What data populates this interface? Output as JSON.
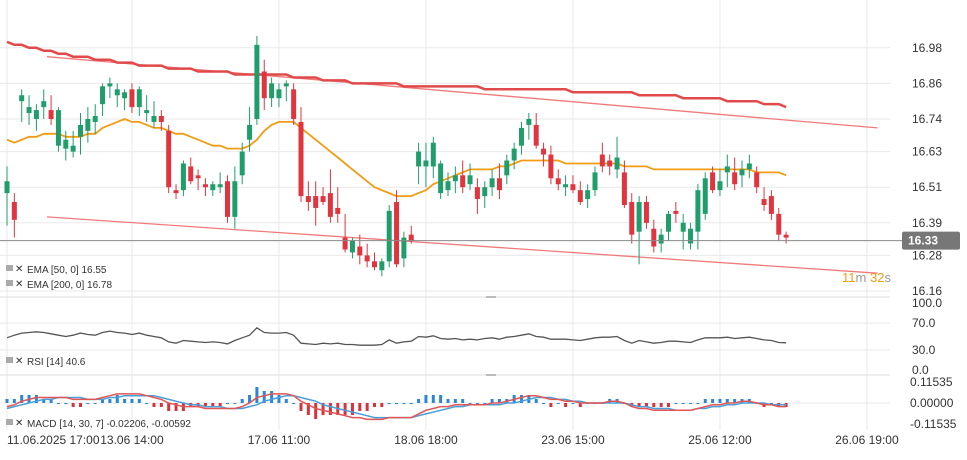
{
  "colors": {
    "up": "#1f9d6b",
    "down": "#e0343f",
    "ema50": "#f39c12",
    "ema200": "#e04a4a",
    "channel": "#f07a7a",
    "rsi": "#555555",
    "macd_line": "#e25555",
    "macd_signal": "#4a9fd8",
    "hist_up": "#2c86d6",
    "hist_down": "#d6333a",
    "grid": "#e9e9e9",
    "price_line": "#8a8a8a",
    "timer_orange": "#f39c12"
  },
  "price_axis": {
    "min": 16.16,
    "max": 17.04,
    "ticks": [
      "16.98",
      "16.86",
      "16.74",
      "16.63",
      "16.51",
      "16.39",
      "16.28",
      "16.16"
    ]
  },
  "current_price": {
    "value": 16.33,
    "label": "16.33"
  },
  "timer": {
    "minutes": "11",
    "m": "m",
    "seconds": "32",
    "s": "s"
  },
  "x_labels": [
    "11.06.2025 17:00",
    "13.06 14:00",
    "17.06 11:00",
    "18.06 18:00",
    "23.06 15:00",
    "25.06 12:00",
    "26.06 19:00"
  ],
  "legend": {
    "ema50": "EMA [50, 0] 16.55",
    "ema200": "EMA [200, 0] 16.78",
    "rsi": "RSI [14] 40.6",
    "macd": "MACD [14, 30, 7] -0.02206, -0.00592"
  },
  "rsi_axis": {
    "min": 0,
    "max": 100,
    "ticks": [
      "100.0",
      "70.0",
      "30.0",
      "0.0"
    ]
  },
  "macd_axis": {
    "min": -0.11535,
    "max": 0.11535,
    "ticks": [
      "0.11535",
      "0.00000",
      "-0.11535"
    ]
  },
  "chart_data": {
    "type": "candlestick",
    "candles": [
      [
        16.49,
        16.58,
        16.38,
        16.53
      ],
      [
        16.46,
        16.49,
        16.34,
        16.4
      ],
      [
        16.8,
        16.84,
        16.73,
        16.82
      ],
      [
        16.76,
        16.82,
        16.72,
        16.78
      ],
      [
        16.74,
        16.79,
        16.7,
        16.77
      ],
      [
        16.78,
        16.84,
        16.74,
        16.8
      ],
      [
        16.77,
        16.82,
        16.72,
        16.74
      ],
      [
        16.65,
        16.78,
        16.63,
        16.77
      ],
      [
        16.64,
        16.7,
        16.6,
        16.67
      ],
      [
        16.63,
        16.7,
        16.61,
        16.65
      ],
      [
        16.68,
        16.76,
        16.62,
        16.72
      ],
      [
        16.7,
        16.78,
        16.66,
        16.74
      ],
      [
        16.73,
        16.79,
        16.69,
        16.75
      ],
      [
        16.79,
        16.86,
        16.75,
        16.85
      ],
      [
        16.85,
        16.88,
        16.81,
        16.86
      ],
      [
        16.82,
        16.86,
        16.78,
        16.84
      ],
      [
        16.81,
        16.84,
        16.77,
        16.83
      ],
      [
        16.84,
        16.86,
        16.76,
        16.78
      ],
      [
        16.78,
        16.85,
        16.75,
        16.84
      ],
      [
        16.76,
        16.82,
        16.73,
        16.77
      ],
      [
        16.73,
        16.8,
        16.71,
        16.75
      ],
      [
        16.75,
        16.77,
        16.7,
        16.73
      ],
      [
        16.7,
        16.72,
        16.49,
        16.51
      ],
      [
        16.5,
        16.52,
        16.47,
        16.49
      ],
      [
        16.5,
        16.6,
        16.48,
        16.59
      ],
      [
        16.58,
        16.61,
        16.52,
        16.53
      ],
      [
        16.55,
        16.57,
        16.5,
        16.54
      ],
      [
        16.52,
        16.54,
        16.48,
        16.51
      ],
      [
        16.5,
        16.53,
        16.48,
        16.52
      ],
      [
        16.51,
        16.56,
        16.49,
        16.52
      ],
      [
        16.53,
        16.55,
        16.39,
        16.41
      ],
      [
        16.41,
        16.58,
        16.37,
        16.53
      ],
      [
        16.55,
        16.66,
        16.52,
        16.63
      ],
      [
        16.67,
        16.78,
        16.63,
        16.72
      ],
      [
        16.74,
        17.02,
        16.72,
        16.99
      ],
      [
        16.9,
        16.94,
        16.77,
        16.81
      ],
      [
        16.81,
        16.88,
        16.78,
        16.86
      ],
      [
        16.81,
        16.86,
        16.78,
        16.84
      ],
      [
        16.85,
        16.87,
        16.8,
        16.86
      ],
      [
        16.84,
        16.86,
        16.72,
        16.74
      ],
      [
        16.73,
        16.78,
        16.46,
        16.48
      ],
      [
        16.48,
        16.53,
        16.43,
        16.46
      ],
      [
        16.48,
        16.53,
        16.38,
        16.44
      ],
      [
        16.48,
        16.51,
        16.45,
        16.46
      ],
      [
        16.49,
        16.57,
        16.39,
        16.41
      ],
      [
        16.44,
        16.51,
        16.39,
        16.42
      ],
      [
        16.34,
        16.42,
        16.29,
        16.3
      ],
      [
        16.29,
        16.34,
        16.27,
        16.33
      ],
      [
        16.31,
        16.35,
        16.25,
        16.28
      ],
      [
        16.28,
        16.32,
        16.24,
        16.26
      ],
      [
        16.26,
        16.29,
        16.23,
        16.24
      ],
      [
        16.23,
        16.27,
        16.21,
        16.26
      ],
      [
        16.26,
        16.45,
        16.24,
        16.43
      ],
      [
        16.46,
        16.5,
        16.24,
        16.25
      ],
      [
        16.27,
        16.36,
        16.24,
        16.34
      ],
      [
        16.35,
        16.38,
        16.32,
        16.33
      ],
      [
        16.58,
        16.66,
        16.52,
        16.63
      ],
      [
        16.58,
        16.66,
        16.51,
        16.6
      ],
      [
        16.58,
        16.68,
        16.54,
        16.66
      ],
      [
        16.49,
        16.6,
        16.47,
        16.59
      ],
      [
        16.5,
        16.56,
        16.48,
        16.53
      ],
      [
        16.53,
        16.58,
        16.49,
        16.55
      ],
      [
        16.55,
        16.6,
        16.49,
        16.51
      ],
      [
        16.52,
        16.59,
        16.5,
        16.55
      ],
      [
        16.51,
        16.54,
        16.42,
        16.47
      ],
      [
        16.48,
        16.53,
        16.44,
        16.51
      ],
      [
        16.51,
        16.57,
        16.48,
        16.54
      ],
      [
        16.54,
        16.59,
        16.47,
        16.5
      ],
      [
        16.55,
        16.62,
        16.52,
        16.6
      ],
      [
        16.6,
        16.66,
        16.57,
        16.64
      ],
      [
        16.65,
        16.73,
        16.62,
        16.71
      ],
      [
        16.72,
        16.76,
        16.67,
        16.74
      ],
      [
        16.72,
        16.76,
        16.64,
        16.65
      ],
      [
        16.64,
        16.66,
        16.58,
        16.62
      ],
      [
        16.62,
        16.65,
        16.52,
        16.54
      ],
      [
        16.54,
        16.57,
        16.5,
        16.52
      ],
      [
        16.51,
        16.55,
        16.48,
        16.52
      ],
      [
        16.52,
        16.55,
        16.49,
        16.5
      ],
      [
        16.5,
        16.53,
        16.45,
        16.46
      ],
      [
        16.47,
        16.52,
        16.44,
        16.5
      ],
      [
        16.5,
        16.58,
        16.48,
        16.56
      ],
      [
        16.62,
        16.66,
        16.56,
        16.58
      ],
      [
        16.6,
        16.62,
        16.55,
        16.58
      ],
      [
        16.57,
        16.68,
        16.54,
        16.61
      ],
      [
        16.56,
        16.6,
        16.44,
        16.45
      ],
      [
        16.46,
        16.49,
        16.32,
        16.35
      ],
      [
        16.36,
        16.48,
        16.25,
        16.46
      ],
      [
        16.46,
        16.48,
        16.37,
        16.39
      ],
      [
        16.37,
        16.4,
        16.29,
        16.31
      ],
      [
        16.32,
        16.37,
        16.29,
        16.35
      ],
      [
        16.36,
        16.43,
        16.33,
        16.42
      ],
      [
        16.43,
        16.46,
        16.39,
        16.42
      ],
      [
        16.36,
        16.42,
        16.3,
        16.39
      ],
      [
        16.32,
        16.39,
        16.3,
        16.37
      ],
      [
        16.36,
        16.52,
        16.3,
        16.5
      ],
      [
        16.42,
        16.56,
        16.4,
        16.54
      ],
      [
        16.56,
        16.58,
        16.49,
        16.5
      ],
      [
        16.5,
        16.57,
        16.48,
        16.53
      ],
      [
        16.56,
        16.62,
        16.51,
        16.58
      ],
      [
        16.56,
        16.61,
        16.5,
        16.52
      ],
      [
        16.55,
        16.6,
        16.51,
        16.57
      ],
      [
        16.57,
        16.62,
        16.54,
        16.59
      ],
      [
        16.56,
        16.58,
        16.49,
        16.51
      ],
      [
        16.47,
        16.51,
        16.43,
        16.45
      ],
      [
        16.48,
        16.5,
        16.4,
        16.42
      ],
      [
        16.42,
        16.44,
        16.33,
        16.35
      ],
      [
        16.35,
        16.36,
        16.32,
        16.34
      ]
    ],
    "ema50": [
      16.67,
      16.66,
      16.67,
      16.68,
      16.68,
      16.69,
      16.69,
      16.69,
      16.68,
      16.68,
      16.68,
      16.69,
      16.69,
      16.71,
      16.72,
      16.73,
      16.74,
      16.73,
      16.73,
      16.72,
      16.71,
      16.71,
      16.7,
      16.69,
      16.69,
      16.68,
      16.67,
      16.66,
      16.65,
      16.65,
      16.64,
      16.64,
      16.64,
      16.65,
      16.67,
      16.7,
      16.72,
      16.73,
      16.73,
      16.73,
      16.71,
      16.69,
      16.67,
      16.65,
      16.63,
      16.61,
      16.59,
      16.57,
      16.55,
      16.53,
      16.51,
      16.5,
      16.49,
      16.48,
      16.48,
      16.48,
      16.49,
      16.5,
      16.52,
      16.53,
      16.54,
      16.55,
      16.56,
      16.57,
      16.57,
      16.57,
      16.57,
      16.58,
      16.58,
      16.59,
      16.6,
      16.6,
      16.6,
      16.6,
      16.6,
      16.6,
      16.59,
      16.59,
      16.59,
      16.59,
      16.59,
      16.59,
      16.59,
      16.59,
      16.58,
      16.58,
      16.58,
      16.58,
      16.57,
      16.57,
      16.57,
      16.57,
      16.57,
      16.57,
      16.57,
      16.57,
      16.57,
      16.57,
      16.57,
      16.57,
      16.57,
      16.57,
      16.56,
      16.56,
      16.56,
      16.56,
      16.55
    ],
    "ema200": [
      17.0,
      16.99,
      16.99,
      16.98,
      16.98,
      16.97,
      16.97,
      16.96,
      16.96,
      16.95,
      16.95,
      16.95,
      16.94,
      16.94,
      16.94,
      16.93,
      16.93,
      16.93,
      16.92,
      16.92,
      16.92,
      16.92,
      16.91,
      16.91,
      16.91,
      16.91,
      16.9,
      16.9,
      16.9,
      16.9,
      16.9,
      16.89,
      16.89,
      16.89,
      16.89,
      16.89,
      16.89,
      16.89,
      16.89,
      16.88,
      16.88,
      16.88,
      16.88,
      16.87,
      16.87,
      16.87,
      16.87,
      16.86,
      16.86,
      16.86,
      16.86,
      16.86,
      16.86,
      16.86,
      16.85,
      16.85,
      16.85,
      16.85,
      16.85,
      16.85,
      16.85,
      16.85,
      16.85,
      16.85,
      16.85,
      16.84,
      16.84,
      16.84,
      16.84,
      16.84,
      16.84,
      16.84,
      16.84,
      16.84,
      16.84,
      16.84,
      16.84,
      16.83,
      16.83,
      16.83,
      16.83,
      16.83,
      16.83,
      16.83,
      16.83,
      16.83,
      16.82,
      16.82,
      16.82,
      16.82,
      16.82,
      16.82,
      16.81,
      16.81,
      16.81,
      16.81,
      16.81,
      16.81,
      16.8,
      16.8,
      16.8,
      16.8,
      16.8,
      16.79,
      16.79,
      16.79,
      16.78
    ],
    "channel_upper": [
      [
        0,
        16.95
      ],
      [
        113,
        16.71
      ]
    ],
    "channel_lower": [
      [
        0,
        16.41
      ],
      [
        113,
        16.22
      ]
    ],
    "rsi": [
      48,
      52,
      55,
      56,
      57,
      56,
      54,
      52,
      50,
      52,
      55,
      53,
      52,
      56,
      58,
      56,
      55,
      53,
      55,
      52,
      50,
      48,
      42,
      40,
      44,
      43,
      42,
      41,
      42,
      41,
      39,
      44,
      48,
      52,
      63,
      56,
      55,
      55,
      56,
      52,
      40,
      39,
      38,
      40,
      39,
      40,
      38,
      38,
      37,
      37,
      37,
      38,
      45,
      40,
      42,
      43,
      50,
      49,
      51,
      47,
      46,
      47,
      45,
      46,
      45,
      47,
      48,
      46,
      49,
      50,
      52,
      54,
      50,
      49,
      46,
      46,
      46,
      45,
      44,
      46,
      48,
      49,
      49,
      50,
      44,
      40,
      44,
      42,
      40,
      41,
      43,
      43,
      42,
      41,
      45,
      48,
      48,
      48,
      49,
      47,
      48,
      49,
      47,
      45,
      44,
      41,
      40.6
    ],
    "macd_line": [
      -0.02,
      -0.01,
      0.01,
      0.02,
      0.03,
      0.03,
      0.03,
      0.03,
      0.03,
      0.02,
      0.02,
      0.02,
      0.02,
      0.03,
      0.04,
      0.05,
      0.05,
      0.05,
      0.05,
      0.04,
      0.03,
      0.02,
      0.0,
      -0.01,
      -0.02,
      -0.02,
      -0.02,
      -0.03,
      -0.03,
      -0.03,
      -0.03,
      -0.03,
      -0.02,
      0.0,
      0.03,
      0.04,
      0.05,
      0.05,
      0.05,
      0.04,
      0.01,
      -0.01,
      -0.03,
      -0.04,
      -0.05,
      -0.06,
      -0.07,
      -0.08,
      -0.08,
      -0.09,
      -0.09,
      -0.09,
      -0.08,
      -0.08,
      -0.08,
      -0.08,
      -0.06,
      -0.04,
      -0.03,
      -0.02,
      -0.02,
      -0.01,
      -0.01,
      -0.01,
      -0.01,
      -0.01,
      0.0,
      0.0,
      0.01,
      0.02,
      0.03,
      0.04,
      0.04,
      0.03,
      0.02,
      0.02,
      0.01,
      0.01,
      0.0,
      0.0,
      0.0,
      0.0,
      0.01,
      0.01,
      0.0,
      -0.02,
      -0.03,
      -0.03,
      -0.04,
      -0.04,
      -0.04,
      -0.04,
      -0.04,
      -0.04,
      -0.03,
      -0.02,
      -0.01,
      -0.01,
      0.0,
      0.0,
      0.01,
      0.01,
      0.0,
      -0.01,
      -0.01,
      -0.02,
      -0.02
    ],
    "macd_signal": [
      -0.03,
      -0.02,
      -0.01,
      0.0,
      0.01,
      0.02,
      0.02,
      0.03,
      0.03,
      0.03,
      0.03,
      0.02,
      0.02,
      0.02,
      0.03,
      0.03,
      0.04,
      0.04,
      0.04,
      0.04,
      0.04,
      0.03,
      0.02,
      0.01,
      0.0,
      -0.01,
      -0.01,
      -0.02,
      -0.02,
      -0.02,
      -0.03,
      -0.03,
      -0.03,
      -0.02,
      -0.01,
      0.01,
      0.02,
      0.03,
      0.04,
      0.04,
      0.03,
      0.02,
      0.01,
      -0.01,
      -0.02,
      -0.03,
      -0.04,
      -0.05,
      -0.06,
      -0.07,
      -0.08,
      -0.08,
      -0.08,
      -0.08,
      -0.08,
      -0.08,
      -0.07,
      -0.06,
      -0.05,
      -0.04,
      -0.03,
      -0.02,
      -0.02,
      -0.01,
      -0.01,
      -0.01,
      -0.01,
      -0.01,
      0.0,
      0.0,
      0.01,
      0.02,
      0.03,
      0.03,
      0.03,
      0.02,
      0.02,
      0.01,
      0.01,
      0.0,
      0.0,
      0.0,
      0.0,
      0.0,
      0.0,
      -0.01,
      -0.02,
      -0.02,
      -0.03,
      -0.03,
      -0.03,
      -0.04,
      -0.04,
      -0.04,
      -0.03,
      -0.03,
      -0.02,
      -0.02,
      -0.01,
      -0.01,
      0.0,
      0.0,
      0.0,
      0.0,
      -0.01,
      -0.01,
      -0.01
    ]
  }
}
